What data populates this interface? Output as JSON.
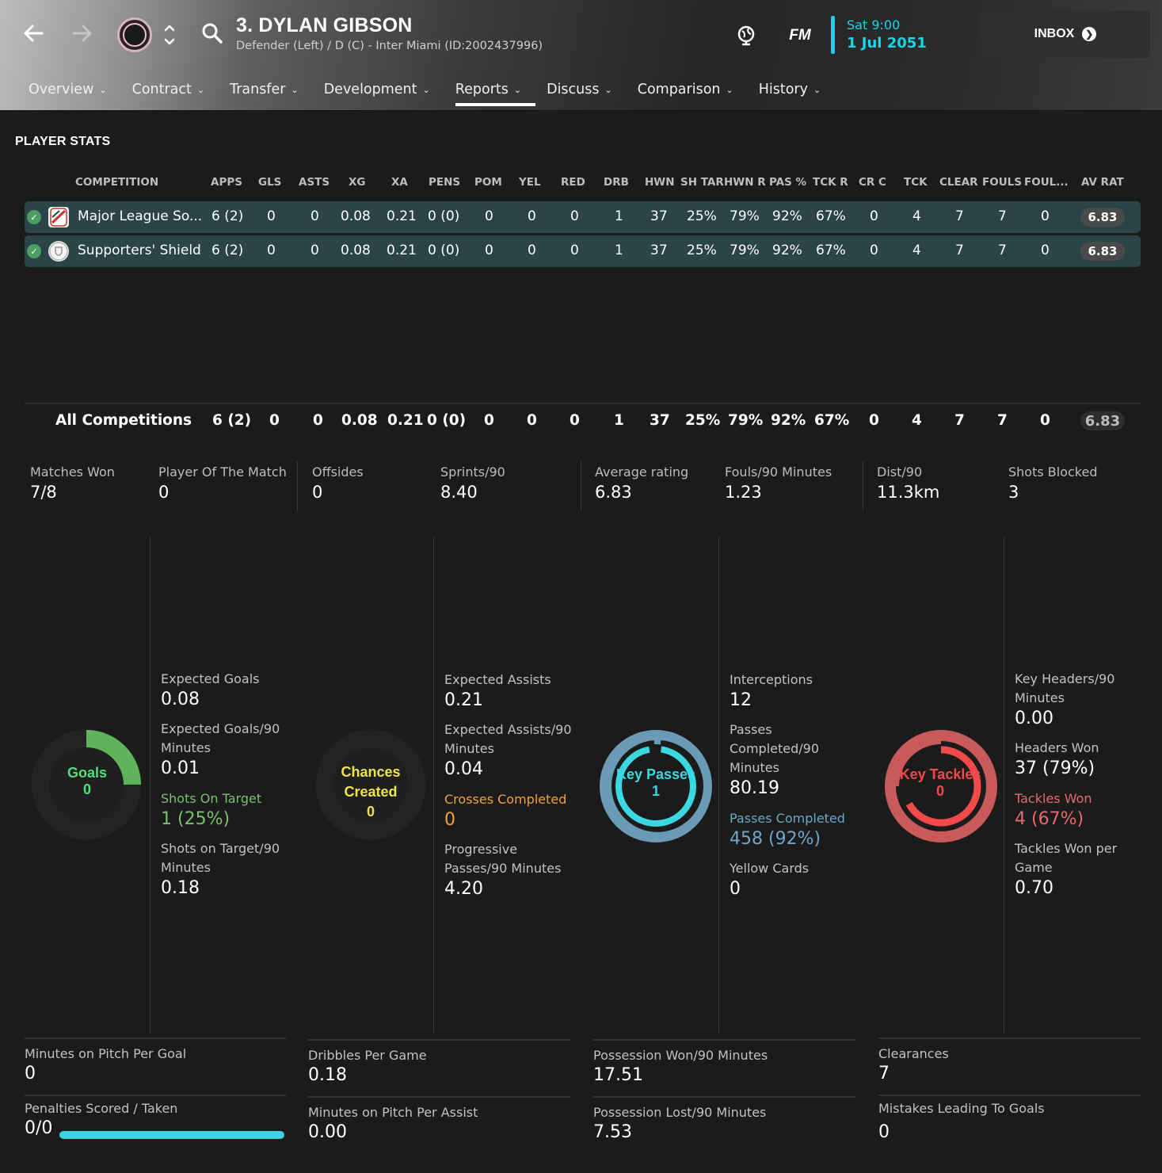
{
  "header": {
    "player_title": "3. DYLAN GIBSON",
    "player_subtitle": "Defender (Left) / D (C) - Inter Miami (ID:2002437996)",
    "fm_logo": "FM",
    "date_day": "Sat 9:00",
    "date_full": "1 Jul 2051",
    "inbox_label": "INBOX",
    "icons": [
      "back-arrow-icon",
      "forward-arrow-icon",
      "club-badge",
      "up-down-icon",
      "search-icon",
      "globe-icon",
      "fm-logo",
      "inbox-arrow-icon"
    ]
  },
  "tabs": [
    {
      "label": "Overview"
    },
    {
      "label": "Contract"
    },
    {
      "label": "Transfer"
    },
    {
      "label": "Development"
    },
    {
      "label": "Reports",
      "active": true
    },
    {
      "label": "Discuss"
    },
    {
      "label": "Comparison"
    },
    {
      "label": "History"
    }
  ],
  "section_title": "PLAYER STATS",
  "table": {
    "columns": [
      "COMPETITION",
      "APPS",
      "GLS",
      "ASTS",
      "XG",
      "XA",
      "PENS",
      "POM",
      "YEL",
      "RED",
      "DRB",
      "HWN",
      "SH TAR",
      "HWN R",
      "PAS %",
      "TCK R",
      "CR C",
      "TCK",
      "CLEAR",
      "FOULS",
      "FOUL...",
      "AV RAT"
    ],
    "rows": [
      {
        "competition": "Major League So...",
        "cells": [
          "6 (2)",
          "0",
          "0",
          "0.08",
          "0.21",
          "0 (0)",
          "0",
          "0",
          "0",
          "1",
          "37",
          "25%",
          "79%",
          "92%",
          "67%",
          "0",
          "4",
          "7",
          "7",
          "0"
        ],
        "rating": "6.83"
      },
      {
        "competition": "Supporters' Shield",
        "cells": [
          "6 (2)",
          "0",
          "0",
          "0.08",
          "0.21",
          "0 (0)",
          "0",
          "0",
          "0",
          "1",
          "37",
          "25%",
          "79%",
          "92%",
          "67%",
          "0",
          "4",
          "7",
          "7",
          "0"
        ],
        "rating": "6.83"
      }
    ],
    "totals": {
      "label": "All Competitions",
      "cells": [
        "6 (2)",
        "0",
        "0",
        "0.08",
        "0.21",
        "0 (0)",
        "0",
        "0",
        "0",
        "1",
        "37",
        "25%",
        "79%",
        "92%",
        "67%",
        "0",
        "4",
        "7",
        "7",
        "0"
      ],
      "rating": "6.83"
    }
  },
  "summary": [
    {
      "label": "Matches Won",
      "value": "7/8"
    },
    {
      "label": "Player Of The Match",
      "value": "0"
    },
    {
      "label": "Offsides",
      "value": "0"
    },
    {
      "label": "Sprints/90",
      "value": "8.40"
    },
    {
      "label": "Average rating",
      "value": "6.83"
    },
    {
      "label": "Fouls/90 Minutes",
      "value": "1.23"
    },
    {
      "label": "Dist/90",
      "value": "11.3km"
    },
    {
      "label": "Shots Blocked",
      "value": "3"
    }
  ],
  "gauges": {
    "goals": {
      "label": "Goals",
      "value": "0",
      "color": "#5fb35a"
    },
    "chances": {
      "label_line1": "Chances",
      "label_line2": "Created",
      "value": "0",
      "color": "#e8e04a"
    },
    "key_passes": {
      "label": "Key Passes",
      "value": "1",
      "color": "#3ad8e0",
      "outer_color": "#6a9ab5"
    },
    "key_tackles": {
      "label": "Key Tackles",
      "value": "0",
      "color": "#f24a4a",
      "outer_color": "#c85a5a",
      "inner_fill": 0.67
    }
  },
  "panel1": [
    {
      "label": "Expected Goals",
      "value": "0.08"
    },
    {
      "label": "Expected Goals/90 Minutes",
      "value": "0.01"
    },
    {
      "label": "Shots On Target",
      "value": "1 (25%)"
    },
    {
      "label": "Shots on Target/90 Minutes",
      "value": "0.18"
    }
  ],
  "panel2": [
    {
      "label": "Expected Assists",
      "value": "0.21"
    },
    {
      "label": "Expected Assists/90 Minutes",
      "value": "0.04"
    },
    {
      "label": "Crosses Completed",
      "value": "0"
    },
    {
      "label": "Progressive Passes/90 Minutes",
      "value": "4.20"
    }
  ],
  "panel3": [
    {
      "label": "Interceptions",
      "value": "12"
    },
    {
      "label": "Passes Completed/90 Minutes",
      "value": "80.19"
    },
    {
      "label": "Passes Completed",
      "value": "458 (92%)"
    },
    {
      "label": "Yellow Cards",
      "value": "0"
    }
  ],
  "panel4": [
    {
      "label": "Key Headers/90 Minutes",
      "value": "0.00"
    },
    {
      "label": "Headers Won",
      "value": "37 (79%)"
    },
    {
      "label": "Tackles Won",
      "value": "4 (67%)"
    },
    {
      "label": "Tackles Won per Game",
      "value": "0.70"
    }
  ],
  "bottom": [
    {
      "label": "Minutes on Pitch Per Goal",
      "value": "0"
    },
    {
      "label": "Penalties Scored / Taken",
      "value": "0/0",
      "bar_fill": 1.0
    },
    {
      "label": "Dribbles Per Game",
      "value": "0.18"
    },
    {
      "label": "Minutes on Pitch Per Assist",
      "value": "0.00"
    },
    {
      "label": "Possession Won/90 Minutes",
      "value": "17.51"
    },
    {
      "label": "Possession Lost/90 Minutes",
      "value": "7.53"
    },
    {
      "label": "Clearances",
      "value": "7"
    },
    {
      "label": "Mistakes Leading To Goals",
      "value": "0"
    }
  ]
}
